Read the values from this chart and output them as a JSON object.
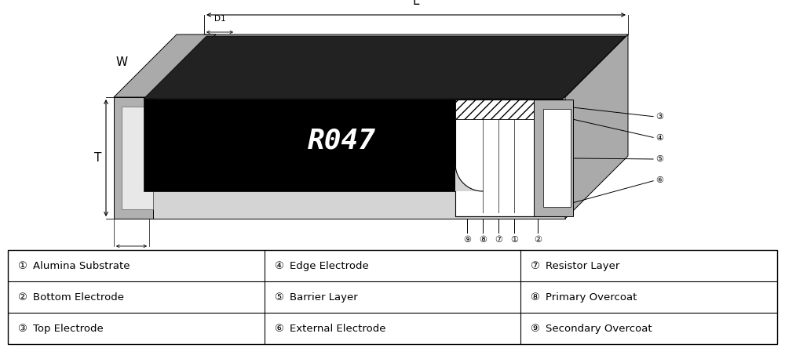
{
  "table_data": [
    [
      "①",
      "Alumina Substrate",
      "④",
      "Edge Electrode",
      "⑦",
      "Resistor Layer"
    ],
    [
      "②",
      "Bottom Electrode",
      "⑤",
      "Barrier Layer",
      "⑧",
      "Primary Overcoat"
    ],
    [
      "③",
      "Top Electrode",
      "⑥",
      "External Electrode",
      "⑨",
      "Secondary Overcoat"
    ]
  ],
  "bg_color": "#ffffff",
  "chip_black": "#111111",
  "chip_light_gray": "#d4d4d4",
  "chip_mid_gray": "#b0b0b0",
  "chip_dark_gray": "#888888",
  "chip_white": "#f0f0f0",
  "chip_hatched": "#c8c8c8"
}
